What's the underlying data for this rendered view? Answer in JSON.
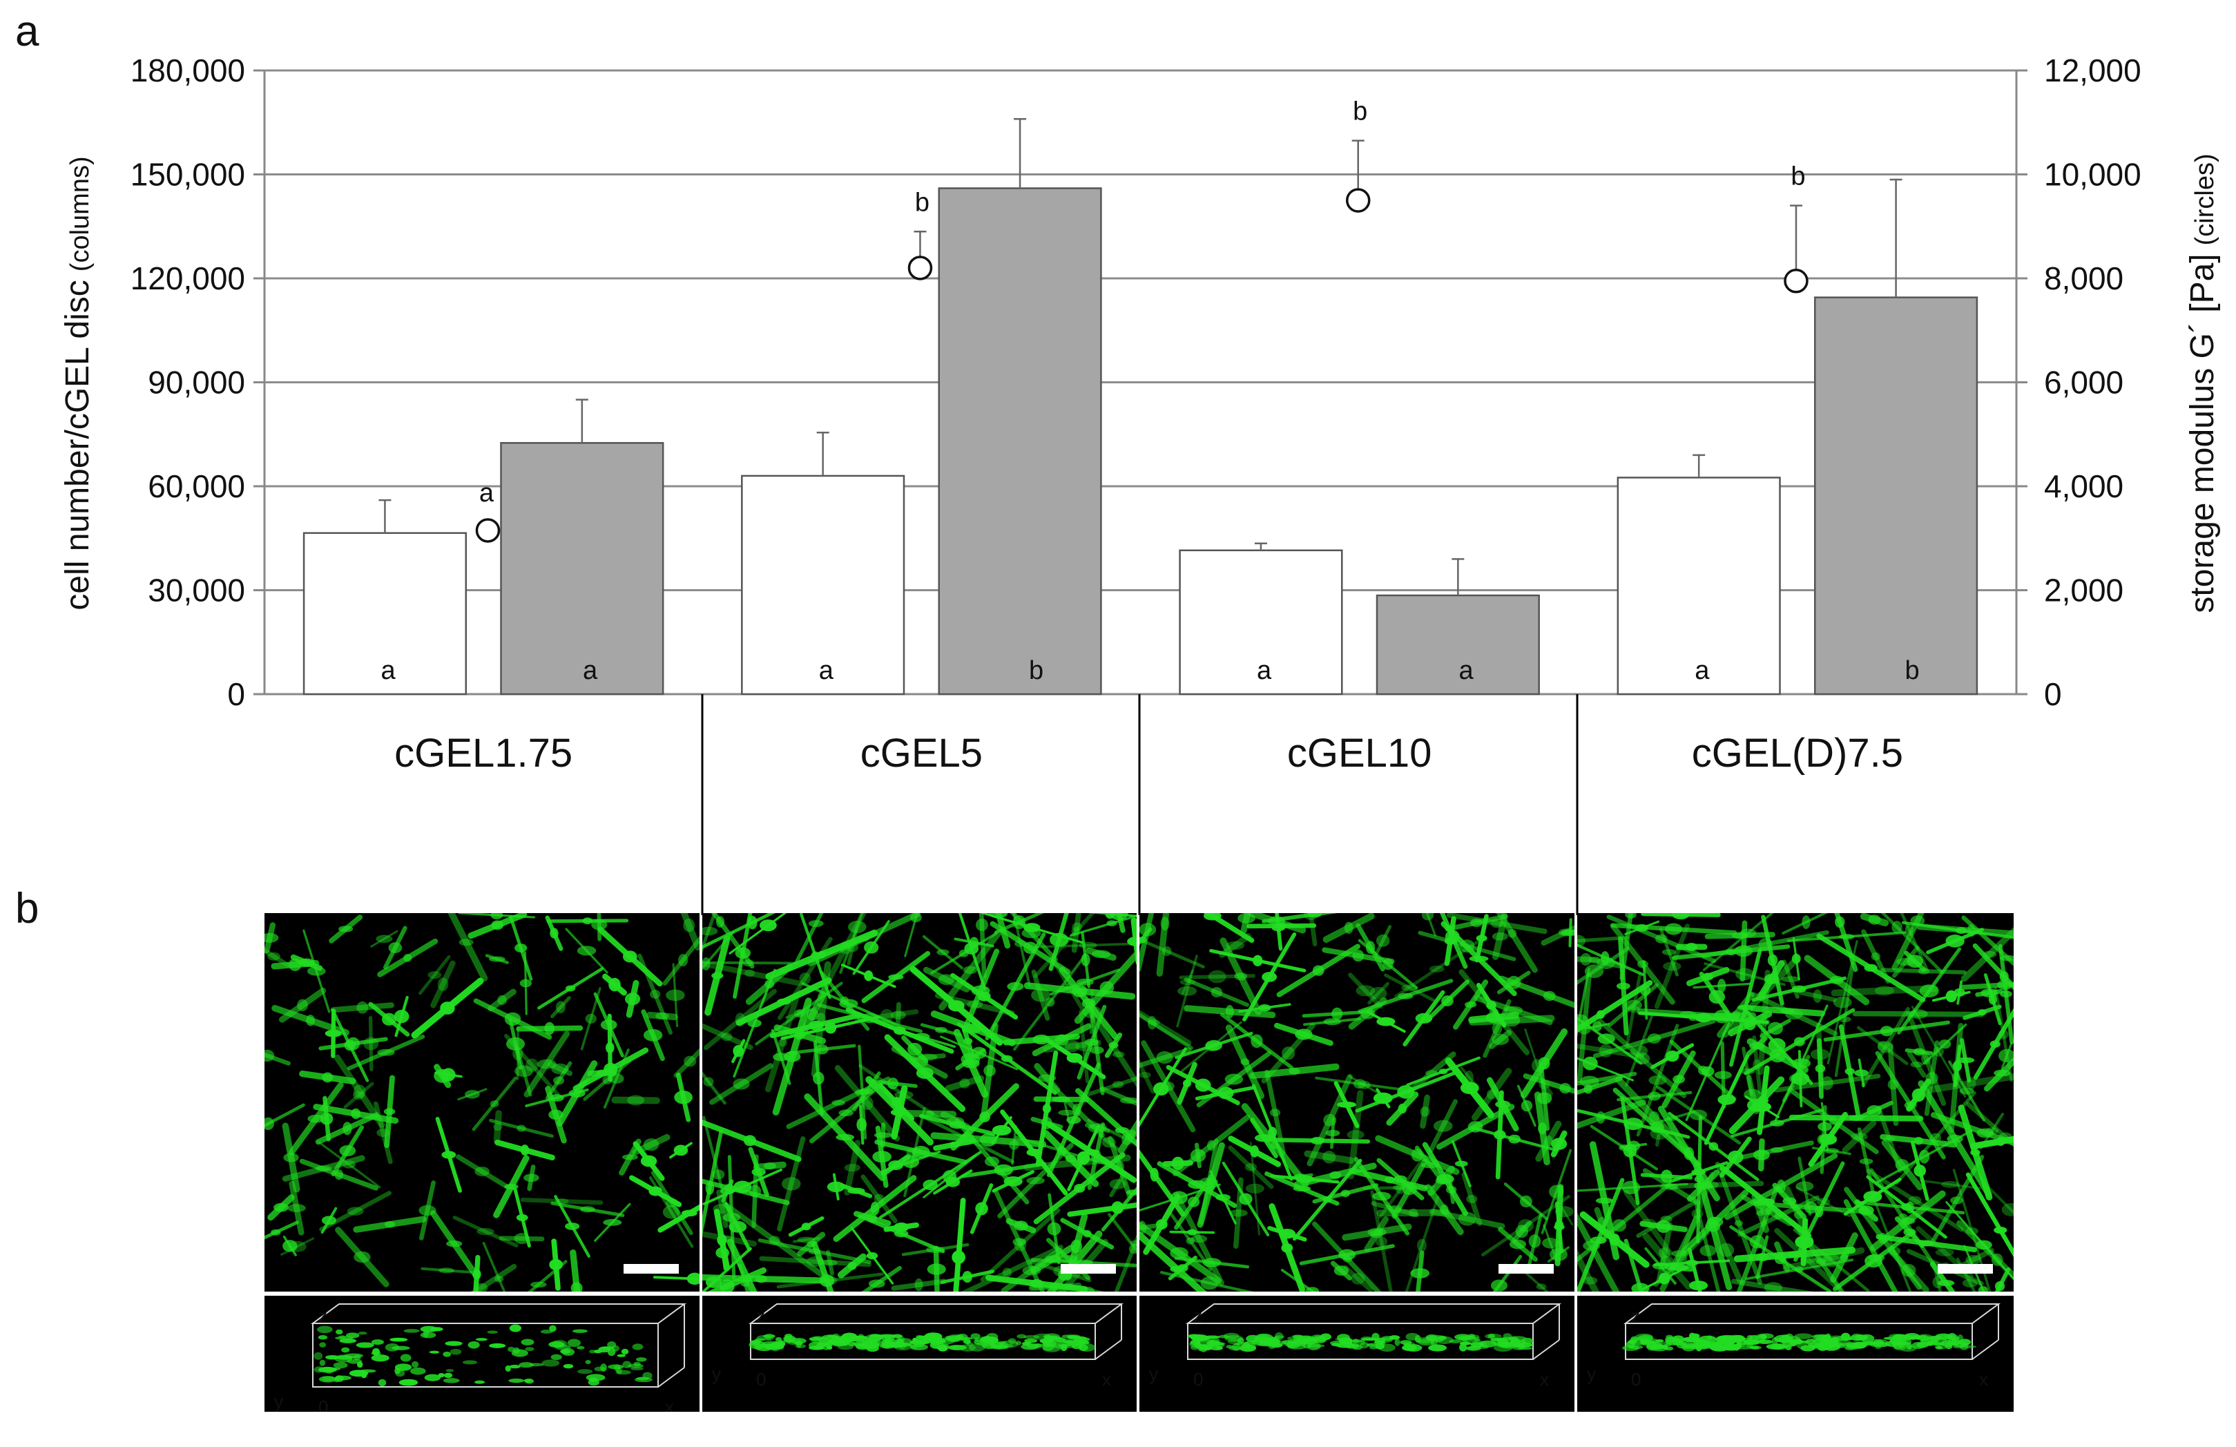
{
  "panel_labels": {
    "a": "a",
    "b": "b"
  },
  "colors": {
    "bar_white": "#ffffff",
    "bar_grey": "#a6a6a6",
    "bar_stroke": "#555555",
    "gridline": "#8c8c8c",
    "cell_green": "#22dd22",
    "axis_box": "#d8d8d8",
    "axis_letter": "#f0b400"
  },
  "chart_data": {
    "type": "bar",
    "categories": [
      "cGEL1.75",
      "cGEL5",
      "cGEL10",
      "cGEL(D)7.5"
    ],
    "series": [
      {
        "values": [
          46500,
          63000,
          41500,
          62500
        ],
        "errors": [
          9500,
          12500,
          2000,
          6500
        ],
        "labels": [
          "a",
          "a",
          "a",
          "a"
        ]
      },
      {
        "values": [
          72500,
          146000,
          28500,
          114500
        ],
        "errors": [
          12500,
          20000,
          10500,
          34000
        ],
        "labels": [
          "a",
          "b",
          "a",
          "b"
        ]
      }
    ],
    "storage_modulus": {
      "values": [
        3150,
        8200,
        9500,
        7950
      ],
      "errors": [
        0,
        700,
        1150,
        1450
      ],
      "labels": [
        "a",
        "b",
        "b",
        "b"
      ]
    },
    "ylabel": "cell number/cGEL disc",
    "ylabel_suffix": "(columns)",
    "y2label": "storage modulus G´ [Pa]",
    "y2label_suffix": "(circles)",
    "ylim": [
      0,
      180000
    ],
    "y2lim": [
      0,
      12000
    ],
    "yticks": [
      "0",
      "30,000",
      "60,000",
      "90,000",
      "120,000",
      "150,000",
      "180,000"
    ],
    "y2ticks": [
      "0",
      "2,000",
      "4,000",
      "6,000",
      "8,000",
      "10,000",
      "12,000"
    ],
    "grid": true
  },
  "micrographs": {
    "axis_labels": {
      "z": "z",
      "y": "y",
      "origin": "0",
      "x": "x"
    },
    "density": [
      0.28,
      0.72,
      0.52,
      0.82
    ]
  }
}
